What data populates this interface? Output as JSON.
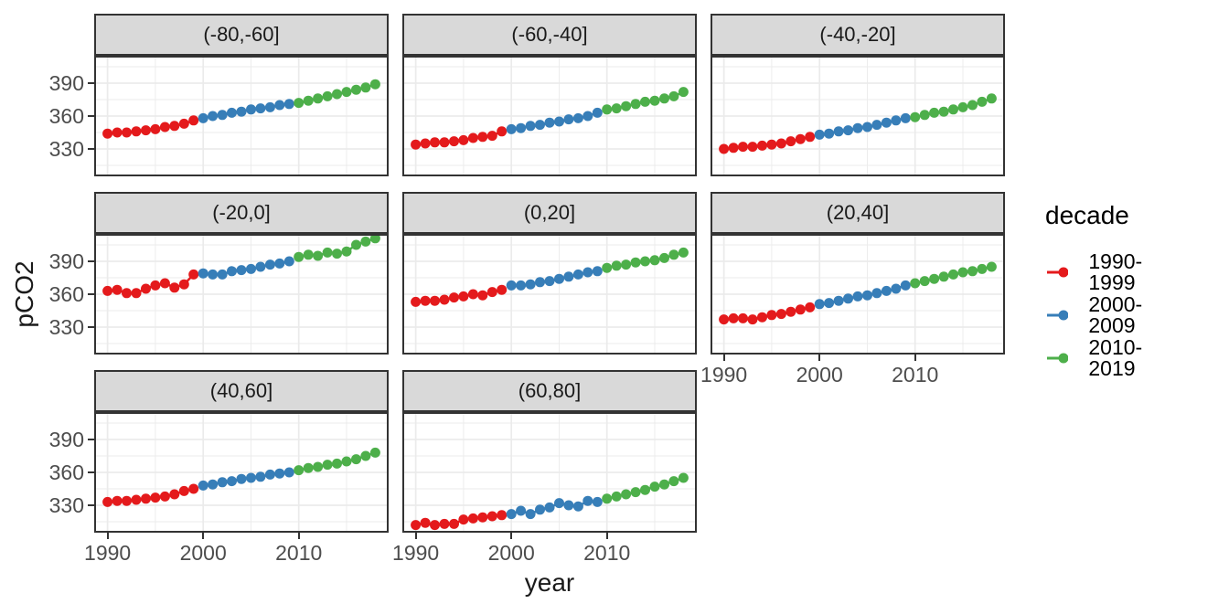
{
  "chart_data": {
    "type": "scatter",
    "xlabel": "year",
    "ylabel": "pCO2",
    "x_ticks": [
      1990,
      2000,
      2010
    ],
    "y_ticks": [
      330,
      360,
      390
    ],
    "x_minor": [
      1995,
      2005,
      2015
    ],
    "y_minor": [
      315,
      345,
      375,
      405
    ],
    "x_range": [
      1988.6,
      2019.4
    ],
    "y_range": [
      305,
      415
    ],
    "grid": "on",
    "legend_position": "right",
    "legend": {
      "title": "decade",
      "entries": [
        {
          "label": "1990-1999",
          "color": "#E41A1C",
          "start": 1990,
          "end": 1999
        },
        {
          "label": "2000-2009",
          "color": "#377EB8",
          "start": 2000,
          "end": 2009
        },
        {
          "label": "2010-2019",
          "color": "#4DAF4A",
          "start": 2010,
          "end": 2019
        }
      ]
    },
    "years": [
      1990,
      1991,
      1992,
      1993,
      1994,
      1995,
      1996,
      1997,
      1998,
      1999,
      2000,
      2001,
      2002,
      2003,
      2004,
      2005,
      2006,
      2007,
      2008,
      2009,
      2010,
      2011,
      2012,
      2013,
      2014,
      2015,
      2016,
      2017,
      2018
    ],
    "facets": [
      {
        "label": "(-80,-60]",
        "values": [
          344,
          345,
          345,
          346,
          347,
          348,
          350,
          351,
          353,
          356,
          358,
          360,
          361,
          363,
          364,
          366,
          367,
          368,
          370,
          371,
          372,
          374,
          376,
          378,
          380,
          382,
          384,
          386,
          389
        ]
      },
      {
        "label": "(-60,-40]",
        "values": [
          334,
          335,
          336,
          336,
          337,
          338,
          340,
          341,
          342,
          346,
          348,
          349,
          351,
          352,
          354,
          355,
          357,
          358,
          360,
          363,
          366,
          367,
          369,
          371,
          373,
          374,
          376,
          378,
          382
        ]
      },
      {
        "label": "(-40,-20]",
        "values": [
          330,
          331,
          332,
          332,
          333,
          334,
          335,
          337,
          339,
          341,
          343,
          344,
          346,
          347,
          349,
          350,
          352,
          354,
          356,
          358,
          359,
          361,
          363,
          364,
          366,
          368,
          370,
          373,
          376
        ]
      },
      {
        "label": "(-20,0]",
        "values": [
          363,
          364,
          361,
          361,
          365,
          368,
          370,
          366,
          369,
          378,
          379,
          378,
          378,
          381,
          382,
          383,
          385,
          387,
          388,
          390,
          394,
          396,
          395,
          398,
          397,
          399,
          405,
          408,
          411
        ]
      },
      {
        "label": "(0,20]",
        "values": [
          353,
          354,
          354,
          355,
          357,
          358,
          360,
          359,
          362,
          364,
          368,
          368,
          369,
          371,
          372,
          374,
          376,
          378,
          380,
          381,
          384,
          386,
          387,
          389,
          390,
          391,
          393,
          396,
          398
        ]
      },
      {
        "label": "(20,40]",
        "values": [
          337,
          338,
          338,
          337,
          339,
          341,
          342,
          344,
          346,
          348,
          351,
          352,
          354,
          356,
          358,
          359,
          361,
          363,
          365,
          368,
          370,
          372,
          374,
          376,
          378,
          380,
          381,
          383,
          385
        ]
      },
      {
        "label": "(40,60]",
        "values": [
          333,
          334,
          334,
          335,
          336,
          337,
          338,
          340,
          343,
          345,
          348,
          349,
          351,
          352,
          354,
          355,
          356,
          358,
          359,
          360,
          362,
          364,
          365,
          367,
          368,
          370,
          372,
          375,
          378
        ]
      },
      {
        "label": "(60,80]",
        "values": [
          312,
          314,
          312,
          313,
          313,
          317,
          318,
          319,
          320,
          321,
          322,
          325,
          322,
          326,
          328,
          332,
          330,
          329,
          334,
          333,
          336,
          338,
          340,
          342,
          344,
          347,
          349,
          352,
          355
        ]
      }
    ]
  },
  "colors": {
    "strip_fill": "#D9D9D9",
    "panel_border": "#333333",
    "grid": "#EBEBEB",
    "tick_text": "#4d4d4d",
    "background": "#ffffff"
  }
}
